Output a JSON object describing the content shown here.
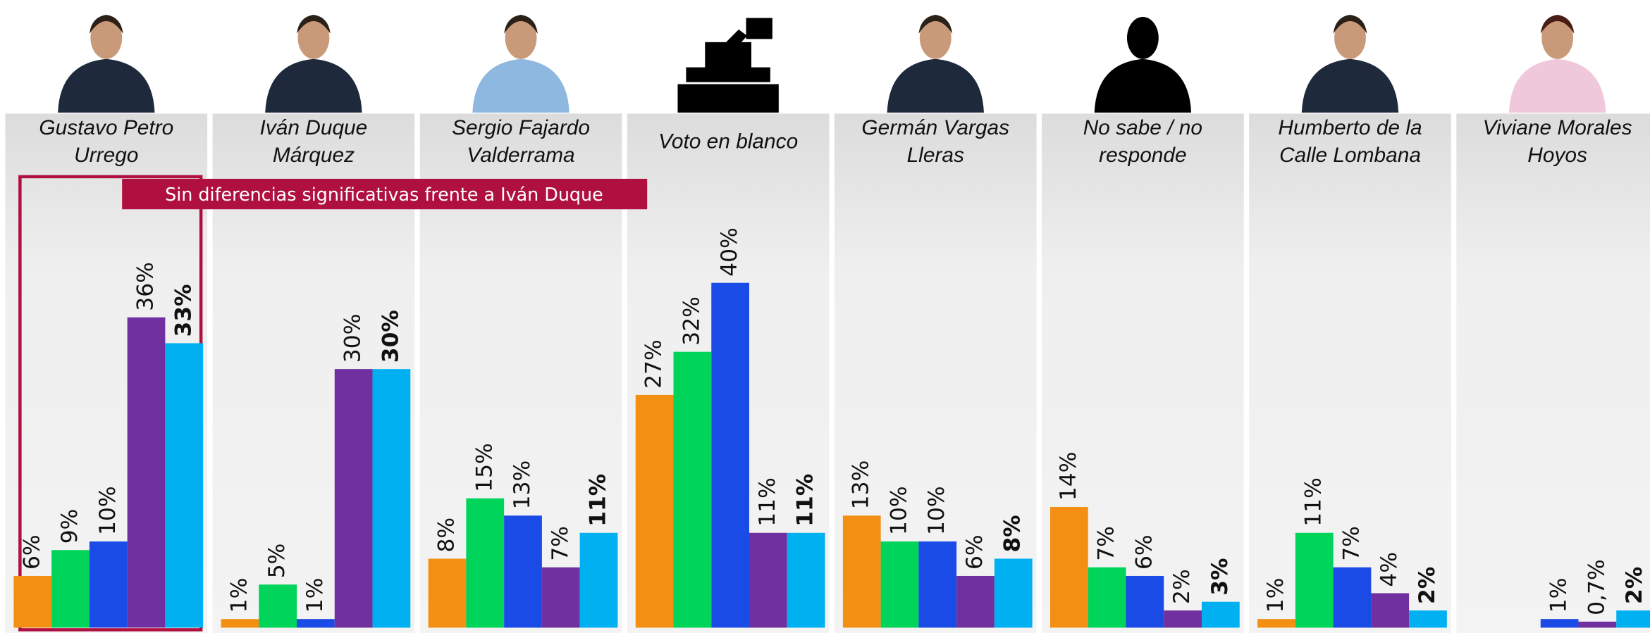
{
  "chart_data": {
    "type": "bar",
    "categories": [
      "Gustavo Petro Urrego",
      "Iván Duque Márquez",
      "Sergio Fajardo Valderrama",
      "Voto en blanco",
      "Germán Vargas Lleras",
      "No sabe / no responde",
      "Humberto de la Calle Lombana",
      "Viviane Morales Hoyos"
    ],
    "series": [
      {
        "color": "#f39014",
        "values": [
          6,
          1,
          8,
          27,
          13,
          14,
          1,
          null
        ],
        "value_labels": [
          "6%",
          "1%",
          "8%",
          "27%",
          "13%",
          "14%",
          "1%",
          null
        ]
      },
      {
        "color": "#00d45a",
        "values": [
          9,
          5,
          15,
          32,
          10,
          7,
          11,
          null
        ],
        "value_labels": [
          "9%",
          "5%",
          "15%",
          "32%",
          "10%",
          "7%",
          "11%",
          null
        ]
      },
      {
        "color": "#1b4be6",
        "values": [
          10,
          1,
          13,
          40,
          10,
          6,
          7,
          1
        ],
        "value_labels": [
          "10%",
          "1%",
          "13%",
          "40%",
          "10%",
          "6%",
          "7%",
          "1%"
        ]
      },
      {
        "color": "#7030a0",
        "values": [
          36,
          30,
          7,
          11,
          6,
          2,
          4,
          0.7
        ],
        "value_labels": [
          "36%",
          "30%",
          "7%",
          "11%",
          "6%",
          "2%",
          "4%",
          "0,7%"
        ]
      },
      {
        "color": "#00b0f0",
        "values": [
          33,
          30,
          11,
          11,
          8,
          3,
          2,
          2
        ],
        "value_labels": [
          "33%",
          "30%",
          "11%",
          "11%",
          "8%",
          "3%",
          "2%",
          "2%"
        ]
      }
    ],
    "annotation": "Sin diferencias significativas frente a Iván Duque"
  }
}
